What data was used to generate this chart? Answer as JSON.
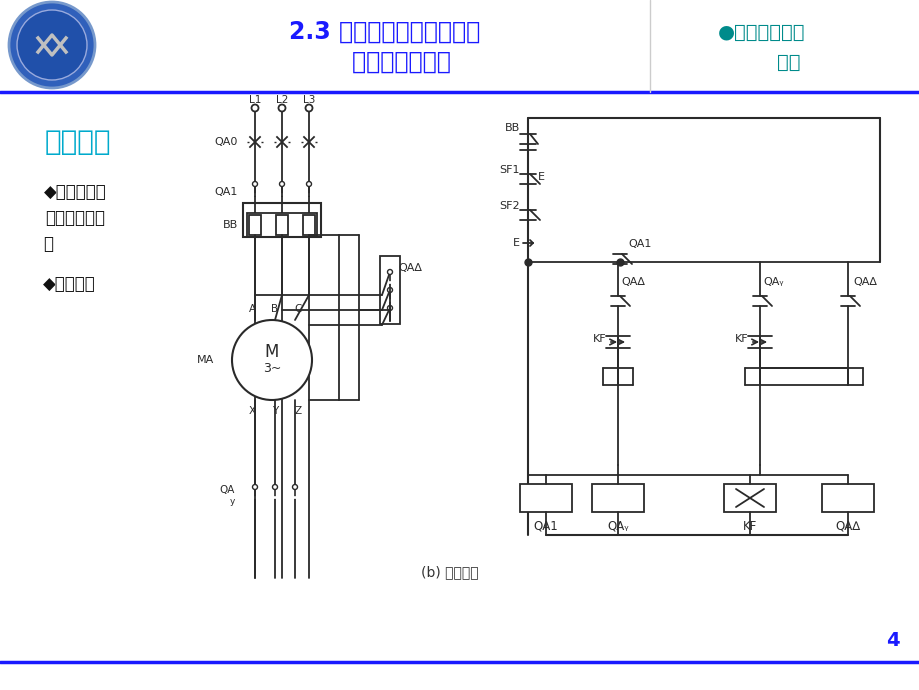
{
  "title_line1": "2.3 三相笼型异步电动机降",
  "title_line2": "    压启动控制线路",
  "title_right_line1": "●电气控制线路",
  "title_right_line2": "        基础",
  "title_color": "#1a1aff",
  "title_right_color": "#008b8b",
  "header_line_color": "#1a1aff",
  "left_title": "工作过程",
  "left_title_color": "#00aacc",
  "bullet1": "◆主电路为什",
  "bullet2": "么像这样连接",
  "bullet3": "？",
  "bullet4": "◆工作过程",
  "bullet_color": "#111111",
  "lc": "#2a2a2a",
  "bg": "#ffffff",
  "page_num": "4",
  "caption": "(b) 控制线路",
  "caption_color": "#333333"
}
